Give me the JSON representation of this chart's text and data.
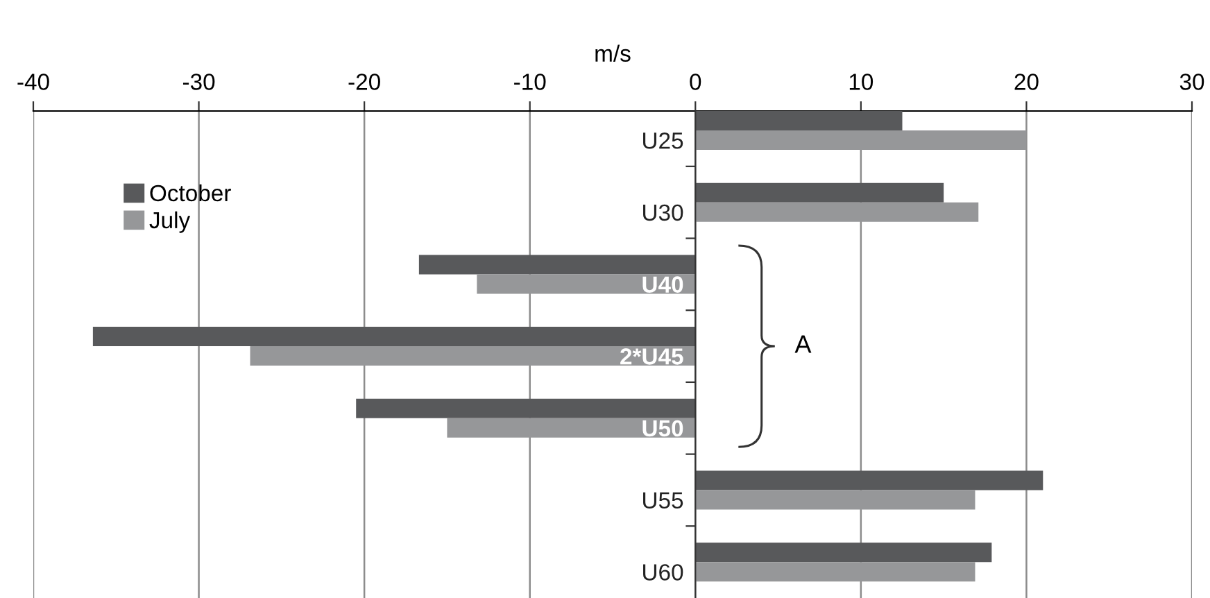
{
  "chart_data": {
    "type": "bar",
    "orientation": "horizontal",
    "xlabel": "m/s",
    "categories": [
      "U25",
      "U30",
      "U40",
      "2*U45",
      "U50",
      "U55",
      "U60"
    ],
    "series": [
      {
        "name": "October",
        "color": "#58595b",
        "values": [
          12.5,
          15.0,
          -16.7,
          -36.4,
          -20.5,
          21.0,
          17.9
        ]
      },
      {
        "name": "July",
        "color": "#969799",
        "values": [
          20.0,
          17.1,
          -13.2,
          -26.9,
          -15.0,
          16.9,
          16.9
        ]
      }
    ],
    "xlim": [
      -40,
      30
    ],
    "xticks": [
      -40,
      -30,
      -20,
      -10,
      0,
      10,
      20,
      30
    ],
    "grid": "x",
    "legend": "top left",
    "annotations": [
      "A"
    ]
  }
}
